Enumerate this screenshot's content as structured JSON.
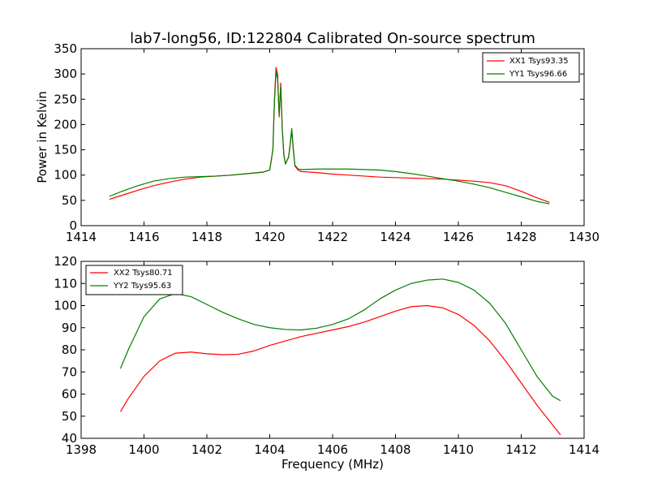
{
  "chart_data": [
    {
      "type": "line",
      "title": "lab7-long56, ID:122804 Calibrated On-source spectrum",
      "xlabel": "",
      "ylabel": "Power in Kelvin",
      "xlim": [
        1414,
        1430
      ],
      "ylim": [
        0,
        350
      ],
      "xticks": [
        "1414",
        "1416",
        "1418",
        "1420",
        "1422",
        "1424",
        "1426",
        "1428",
        "1430"
      ],
      "yticks": [
        "0",
        "50",
        "100",
        "150",
        "200",
        "250",
        "300",
        "350"
      ],
      "grid": false,
      "legend_position": "top-right",
      "series": [
        {
          "name": "XX1 Tsys93.35",
          "color": "#ff0000",
          "x": [
            1414.9,
            1415.3,
            1415.8,
            1416.3,
            1416.8,
            1417.3,
            1417.8,
            1418.3,
            1418.8,
            1419.3,
            1419.8,
            1420.0,
            1420.1,
            1420.15,
            1420.2,
            1420.25,
            1420.3,
            1420.35,
            1420.4,
            1420.45,
            1420.5,
            1420.6,
            1420.65,
            1420.7,
            1420.75,
            1420.8,
            1420.9,
            1421.0,
            1421.5,
            1422.0,
            1422.5,
            1423.0,
            1423.5,
            1424.0,
            1424.5,
            1425.0,
            1425.5,
            1426.0,
            1426.5,
            1427.0,
            1427.5,
            1428.0,
            1428.5,
            1428.9
          ],
          "y": [
            52,
            60,
            70,
            79,
            86,
            92,
            96,
            98,
            100,
            103,
            106,
            110,
            150,
            250,
            313,
            300,
            215,
            282,
            190,
            140,
            122,
            135,
            160,
            188,
            150,
            118,
            110,
            107,
            105,
            102,
            100,
            98,
            96,
            95,
            94,
            93,
            92,
            90,
            88,
            85,
            79,
            68,
            55,
            46
          ]
        },
        {
          "name": "YY1 Tsys96.66",
          "color": "#008000",
          "x": [
            1414.9,
            1415.3,
            1415.8,
            1416.3,
            1416.8,
            1417.3,
            1417.8,
            1418.3,
            1418.8,
            1419.3,
            1419.8,
            1420.0,
            1420.1,
            1420.15,
            1420.2,
            1420.25,
            1420.3,
            1420.35,
            1420.4,
            1420.45,
            1420.5,
            1420.6,
            1420.65,
            1420.7,
            1420.75,
            1420.8,
            1420.9,
            1421.0,
            1421.5,
            1422.0,
            1422.5,
            1423.0,
            1423.5,
            1424.0,
            1424.5,
            1425.0,
            1425.5,
            1426.0,
            1426.5,
            1427.0,
            1427.5,
            1428.0,
            1428.5,
            1428.9
          ],
          "y": [
            58,
            68,
            79,
            88,
            93,
            96,
            97,
            98,
            100,
            103,
            106,
            110,
            150,
            245,
            305,
            290,
            220,
            275,
            188,
            140,
            122,
            136,
            162,
            192,
            152,
            120,
            112,
            111,
            112,
            112,
            112,
            111,
            110,
            107,
            103,
            98,
            93,
            88,
            82,
            75,
            66,
            57,
            48,
            43
          ]
        }
      ]
    },
    {
      "type": "line",
      "title": "",
      "xlabel": "Frequency (MHz)",
      "ylabel": "",
      "xlim": [
        1398,
        1414
      ],
      "ylim": [
        40,
        120
      ],
      "xticks": [
        "1398",
        "1400",
        "1402",
        "1404",
        "1406",
        "1408",
        "1410",
        "1412",
        "1414"
      ],
      "yticks": [
        "40",
        "50",
        "60",
        "70",
        "80",
        "90",
        "100",
        "110",
        "120"
      ],
      "grid": false,
      "legend_position": "top-left",
      "series": [
        {
          "name": "XX2 Tsys80.71",
          "color": "#ff0000",
          "x": [
            1399.25,
            1399.5,
            1400.0,
            1400.5,
            1401.0,
            1401.5,
            1402.0,
            1402.5,
            1403.0,
            1403.5,
            1404.0,
            1404.5,
            1405.0,
            1405.5,
            1406.0,
            1406.5,
            1407.0,
            1407.5,
            1408.0,
            1408.5,
            1409.0,
            1409.5,
            1410.0,
            1410.5,
            1411.0,
            1411.5,
            1412.0,
            1412.5,
            1413.0,
            1413.25
          ],
          "y": [
            52,
            58,
            68,
            75,
            78.5,
            79,
            78.2,
            77.8,
            78,
            79.5,
            82,
            84,
            86,
            87.5,
            89,
            90.5,
            92.5,
            95,
            97.5,
            99.5,
            100,
            99,
            96,
            91,
            84,
            75,
            65,
            55,
            46,
            41.5
          ]
        },
        {
          "name": "YY2 Tsys95.63",
          "color": "#008000",
          "x": [
            1399.25,
            1399.5,
            1400.0,
            1400.5,
            1401.0,
            1401.5,
            1402.0,
            1402.5,
            1403.0,
            1403.5,
            1404.0,
            1404.5,
            1405.0,
            1405.5,
            1406.0,
            1406.5,
            1407.0,
            1407.5,
            1408.0,
            1408.5,
            1409.0,
            1409.5,
            1410.0,
            1410.5,
            1411.0,
            1411.5,
            1412.0,
            1412.5,
            1413.0,
            1413.25
          ],
          "y": [
            71.5,
            80,
            95,
            103,
            105.5,
            104,
            100.5,
            97,
            94,
            91.5,
            90,
            89.2,
            89,
            89.8,
            91.5,
            94,
            98,
            103,
            107,
            110,
            111.5,
            112,
            110.5,
            107,
            101,
            92,
            80,
            68,
            59,
            57
          ]
        }
      ]
    }
  ]
}
